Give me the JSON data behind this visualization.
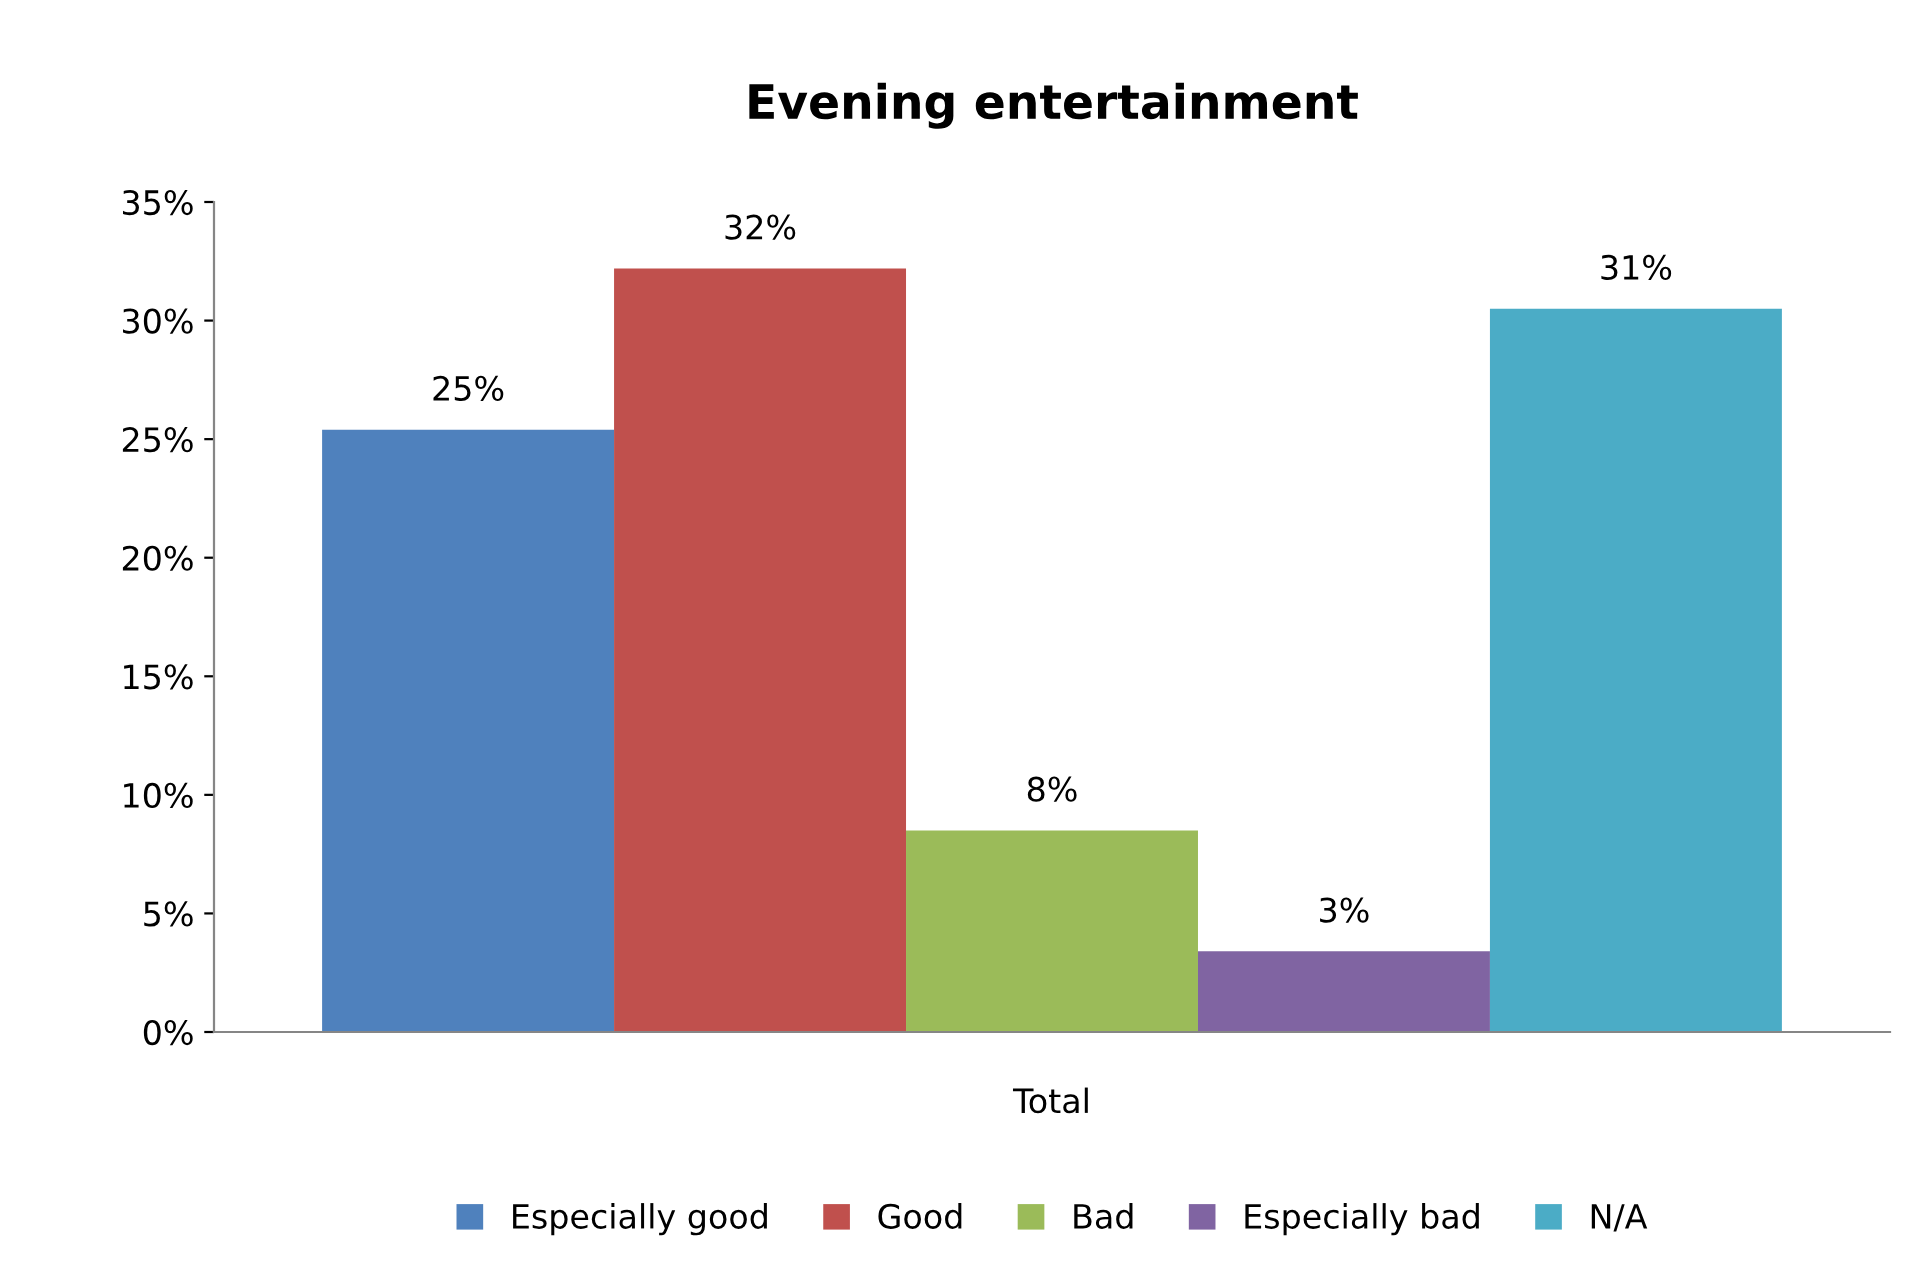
{
  "chart_data": {
    "type": "bar",
    "title": "Evening entertainment",
    "categories": [
      "Total"
    ],
    "series": [
      {
        "name": "Especially good",
        "color": "#4f81bd",
        "values": [
          25.4
        ],
        "value_labels": [
          "25%"
        ]
      },
      {
        "name": "Good",
        "color": "#c0504d",
        "values": [
          32.2
        ],
        "value_labels": [
          "32%"
        ]
      },
      {
        "name": "Bad",
        "color": "#9bbb59",
        "values": [
          8.5
        ],
        "value_labels": [
          "8%"
        ]
      },
      {
        "name": "Especially bad",
        "color": "#8064a2",
        "values": [
          3.4
        ],
        "value_labels": [
          "3%"
        ]
      },
      {
        "name": "N/A",
        "color": "#4bacc6",
        "values": [
          30.5
        ],
        "value_labels": [
          "31%"
        ]
      }
    ],
    "ylim": [
      0,
      35
    ],
    "yticks": [
      {
        "value": 0,
        "label": "0%"
      },
      {
        "value": 5,
        "label": "5%"
      },
      {
        "value": 10,
        "label": "10%"
      },
      {
        "value": 15,
        "label": "15%"
      },
      {
        "value": 20,
        "label": "20%"
      },
      {
        "value": 25,
        "label": "25%"
      },
      {
        "value": 30,
        "label": "30%"
      },
      {
        "value": 35,
        "label": "35%"
      }
    ],
    "grid": false,
    "legend": "bottom"
  }
}
